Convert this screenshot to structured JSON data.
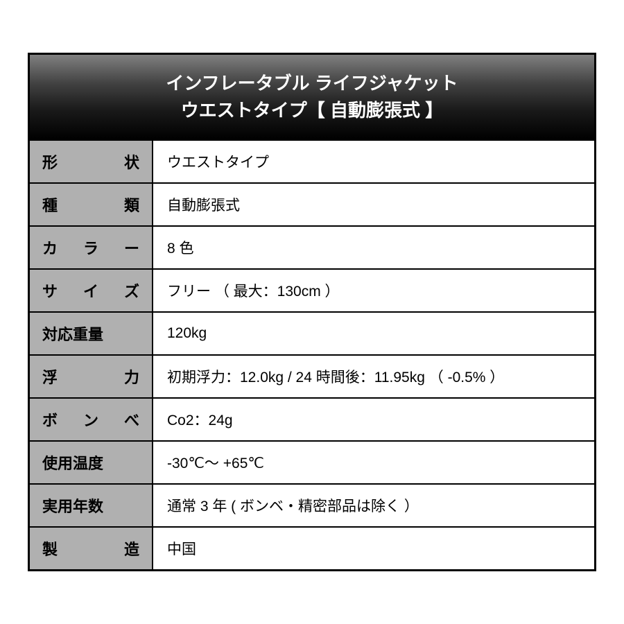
{
  "header": {
    "line1": "インフレータブル ライフジャケット",
    "line2": "ウエストタイプ【 自動膨張式 】"
  },
  "rows": [
    {
      "label_chars": [
        "形",
        "状"
      ],
      "value": "ウエストタイプ"
    },
    {
      "label_chars": [
        "種",
        "類"
      ],
      "value": "自動膨張式"
    },
    {
      "label_chars": [
        "カ",
        "ラ",
        "ー"
      ],
      "value": "8 色"
    },
    {
      "label_chars": [
        "サ",
        "イ",
        "ズ"
      ],
      "value": "フリー （ 最大：130cm ）"
    },
    {
      "label_plain": "対応重量",
      "value": "120kg"
    },
    {
      "label_chars": [
        "浮",
        "力"
      ],
      "value": "初期浮力：12.0kg / 24 時間後：11.95kg （ -0.5% ）"
    },
    {
      "label_chars": [
        "ボ",
        "ン",
        "べ"
      ],
      "value": "Co2：24g"
    },
    {
      "label_plain": "使用温度",
      "value": "-30℃～ +65℃"
    },
    {
      "label_plain": "実用年数",
      "value": "通常 3 年 ( ボンベ・精密部品は除く ）"
    },
    {
      "label_chars": [
        "製",
        "造"
      ],
      "value": "中国"
    }
  ],
  "colors": {
    "border": "#000000",
    "label_bg": "#b0b0b0",
    "value_bg": "#ffffff",
    "header_text": "#ffffff"
  }
}
